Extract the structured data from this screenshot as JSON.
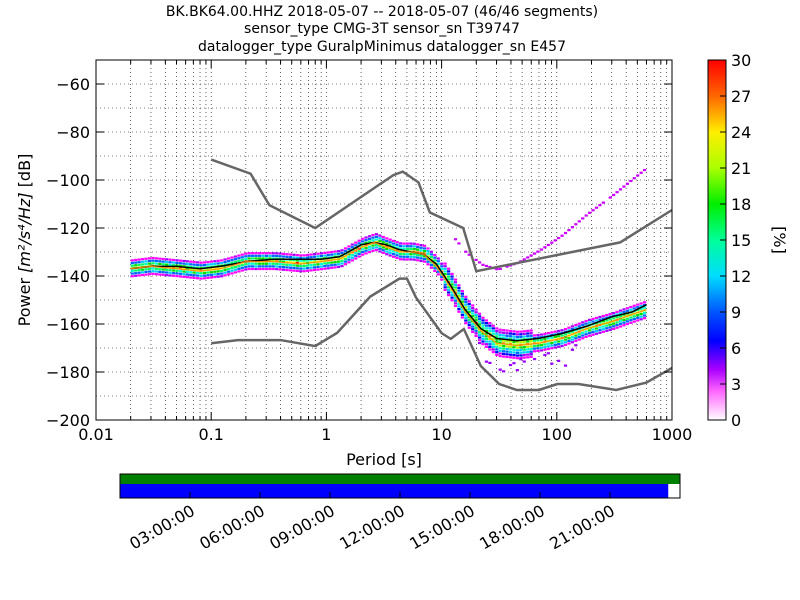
{
  "header": {
    "line1": "BK.BK64.00.HHZ   2018-05-07 -- 2018-05-07  (46/46 segments)",
    "line2": "sensor_type CMG-3T sensor_sn T39747",
    "line3": "datalogger_type GuralpMinimus datalogger_sn E457"
  },
  "axes": {
    "xlabel": "Period [s]",
    "ylabel_prefix": "Power ",
    "ylabel_math": "[m²/s⁴/Hz]",
    "ylabel_suffix": " [dB]"
  },
  "colorbar": {
    "label": "[%]",
    "ticks": [
      "0",
      "3",
      "6",
      "9",
      "12",
      "15",
      "18",
      "21",
      "24",
      "27",
      "30"
    ]
  },
  "timeline": {
    "ticks": [
      "03:00:00",
      "06:00:00",
      "09:00:00",
      "12:00:00",
      "15:00:00",
      "18:00:00",
      "21:00:00"
    ],
    "top_bar_color": "#008000",
    "bottom_bar_color": "#0000ff",
    "coverage_fraction": 0.979
  },
  "chart_data": {
    "type": "heatmap",
    "title": "BK.BK64.00.HHZ   2018-05-07 -- 2018-05-07  (46/46 segments)",
    "xlabel": "Period [s]",
    "ylabel": "Power [m²/s⁴/Hz] [dB]",
    "x_scale": "log",
    "xlim": [
      0.01,
      1000
    ],
    "ylim": [
      -200,
      -50
    ],
    "x_ticks": [
      "0.01",
      "0.1",
      "1",
      "10",
      "100",
      "1000"
    ],
    "y_ticks": [
      "−60",
      "−80",
      "−100",
      "−120",
      "−140",
      "−160",
      "−180",
      "−200"
    ],
    "x_tick_values": [
      0.01,
      0.1,
      1,
      10,
      100,
      1000
    ],
    "y_tick_values": [
      -60,
      -80,
      -100,
      -120,
      -140,
      -160,
      -180,
      -200
    ],
    "colormap": "pqlx",
    "color_range": [
      0,
      30
    ],
    "mode_curve": {
      "period": [
        0.02,
        0.03,
        0.05,
        0.08,
        0.12,
        0.2,
        0.35,
        0.6,
        0.9,
        1.3,
        2.0,
        2.6,
        3.3,
        4.3,
        5.5,
        7,
        9,
        12,
        16,
        22,
        30,
        45,
        70,
        110,
        180,
        300,
        450,
        600
      ],
      "power_db": [
        -137,
        -136,
        -137,
        -138,
        -137,
        -134,
        -134,
        -135,
        -134,
        -133,
        -128,
        -126,
        -128,
        -130,
        -130,
        -131,
        -136,
        -145,
        -155,
        -163,
        -168,
        -169,
        -168,
        -166,
        -162,
        -159,
        -156,
        -154
      ]
    },
    "mean_curve": {
      "period": [
        0.02,
        0.03,
        0.05,
        0.08,
        0.12,
        0.2,
        0.35,
        0.6,
        0.9,
        1.3,
        2.0,
        2.6,
        3.3,
        4.3,
        5.5,
        7,
        9,
        12,
        16,
        22,
        30,
        45,
        70,
        110,
        180,
        300,
        450,
        600
      ],
      "power_db": [
        -137,
        -136,
        -136,
        -137,
        -136,
        -134,
        -133,
        -133,
        -133,
        -132,
        -127,
        -126,
        -127,
        -129,
        -130,
        -131,
        -135,
        -144,
        -154,
        -162,
        -166,
        -167,
        -166,
        -164,
        -161,
        -157,
        -155,
        -152
      ]
    },
    "nhnm": {
      "period": [
        0.1,
        0.22,
        0.32,
        0.8,
        3.8,
        4.6,
        6.3,
        7.9,
        15.4,
        20,
        354.8,
        1000
      ],
      "power_db": [
        -91.5,
        -97.4,
        -110.5,
        -120,
        -98,
        -96.5,
        -101,
        -113.5,
        -120,
        -138,
        -126,
        -112.5
      ]
    },
    "nlnm": {
      "period": [
        0.1,
        0.17,
        0.4,
        0.8,
        1.24,
        2.4,
        4.3,
        5.0,
        6.0,
        10.0,
        12.0,
        15.6,
        21.9,
        31.6,
        45,
        70,
        101,
        154,
        328,
        600,
        1000
      ],
      "power_db": [
        -168,
        -166.7,
        -166.7,
        -169.2,
        -163.7,
        -148.6,
        -141.1,
        -141.1,
        -149,
        -163.8,
        -166.2,
        -162.1,
        -177.5,
        -185,
        -187.5,
        -187.5,
        -185,
        -185,
        -187.5,
        -184.4,
        -178.3
      ]
    }
  }
}
